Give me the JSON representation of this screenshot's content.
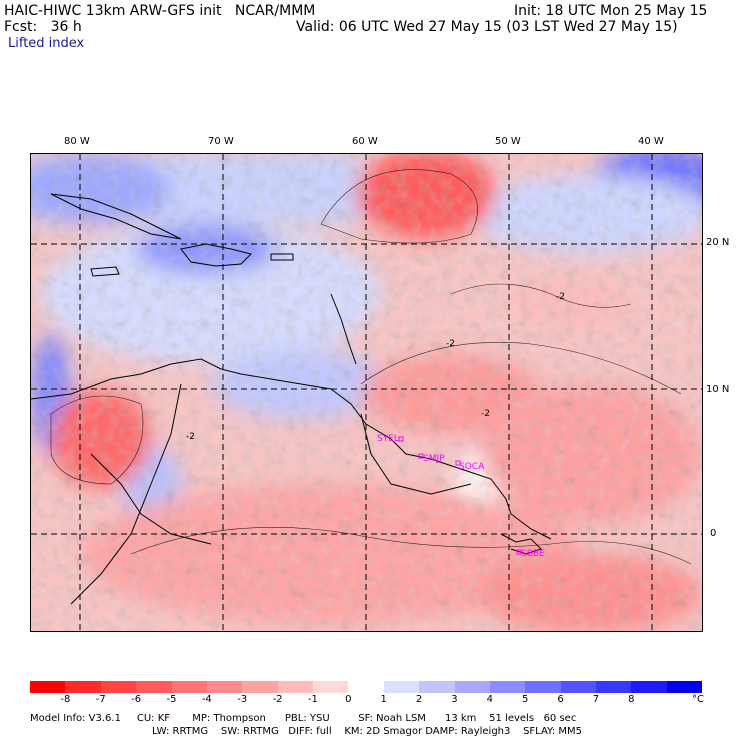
{
  "header": {
    "title": "HAIC-HIWC 13km ARW-GFS init   NCAR/MMM",
    "init": "Init: 18 UTC Mon 25 May 15",
    "fcst": "Fcst:   36 h",
    "valid": "Valid: 06 UTC Wed 27 May 15 (03 LST Wed 27 May 15)",
    "field": "Lifted index"
  },
  "longitude_labels": [
    "80 W",
    "70 W",
    "60 W",
    "50 W",
    "40 W"
  ],
  "latitude_labels": [
    "20 N",
    "10 N",
    "0"
  ],
  "station_labels": [
    "SYEL",
    "SMJP",
    "SOCA",
    "SBBE"
  ],
  "contour_label": "-2",
  "colorbar": {
    "ticks": [
      "-8",
      "-7",
      "-6",
      "-5",
      "-4",
      "-3",
      "-2",
      "-1",
      "0",
      "1",
      "2",
      "3",
      "4",
      "5",
      "6",
      "7",
      "8"
    ],
    "unit": "°C",
    "colors": [
      "#ff0000",
      "#ff2b2b",
      "#ff4444",
      "#ff5c5c",
      "#ff7474",
      "#ff8c8c",
      "#ffa4a4",
      "#ffbcbc",
      "#ffd8d8",
      "#ffffff",
      "#dedeff",
      "#c4c4ff",
      "#a8a8ff",
      "#8c8cff",
      "#7070ff",
      "#5454ff",
      "#3838ff",
      "#1c1cff",
      "#0000f0"
    ]
  },
  "footer": {
    "line1": "Model Info: V3.6.1     CU: KF       MP: Thompson      PBL: YSU         SF: Noah LSM      13 km    51 levels   60 sec",
    "line2": "LW: RRTMG    SW: RRTMG   DIFF: full    KM: 2D Smagor DAMP: Rayleigh3    SFLAY: MM5"
  }
}
